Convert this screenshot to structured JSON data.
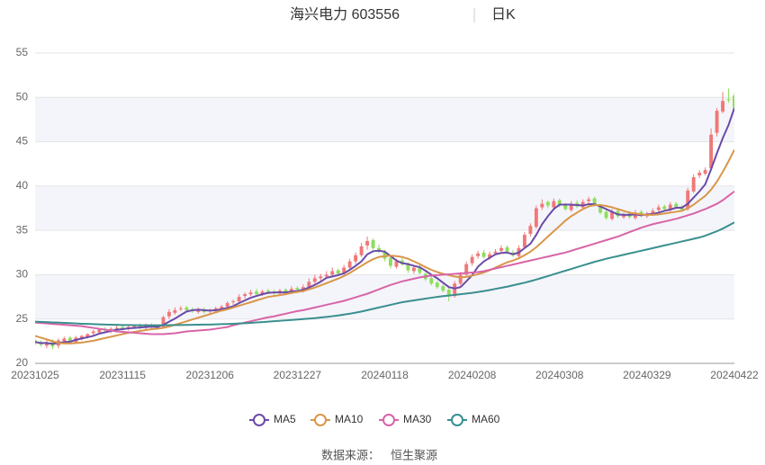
{
  "chart_data": {
    "type": "candlestick",
    "title": "海兴电力 603556",
    "subtitle": "日K",
    "source_label": "数据来源：",
    "source": "恒生聚源",
    "up_color": "#f07878",
    "down_color": "#8edd5c",
    "ylim": [
      20,
      55
    ],
    "yticks": [
      20,
      25,
      30,
      35,
      40,
      45,
      50,
      55
    ],
    "grid": true,
    "legend_position": "bottom",
    "categories": [
      "20231025",
      null,
      null,
      null,
      null,
      null,
      null,
      null,
      null,
      null,
      null,
      null,
      null,
      null,
      null,
      "20231115",
      null,
      null,
      null,
      null,
      null,
      null,
      null,
      null,
      null,
      null,
      null,
      null,
      null,
      null,
      "20231206",
      null,
      null,
      null,
      null,
      null,
      null,
      null,
      null,
      null,
      null,
      null,
      null,
      null,
      null,
      "20231227",
      null,
      null,
      null,
      null,
      null,
      null,
      null,
      null,
      null,
      null,
      null,
      null,
      null,
      null,
      "20240118",
      null,
      null,
      null,
      null,
      null,
      null,
      null,
      null,
      null,
      null,
      null,
      null,
      null,
      null,
      "20240208",
      null,
      null,
      null,
      null,
      null,
      null,
      null,
      null,
      null,
      null,
      null,
      null,
      null,
      null,
      "20240308",
      null,
      null,
      null,
      null,
      null,
      null,
      null,
      null,
      null,
      null,
      null,
      null,
      null,
      null,
      "20240329",
      null,
      null,
      null,
      null,
      null,
      null,
      null,
      null,
      null,
      null,
      null,
      null,
      null,
      null,
      "20240422"
    ],
    "open": [
      22.6,
      22.4,
      22.0,
      22.5,
      22.0,
      22.5,
      22.9,
      22.4,
      22.8,
      23.0,
      23.4,
      23.5,
      23.9,
      23.6,
      24.0,
      24.1,
      23.9,
      24.1,
      24.3,
      24.0,
      24.3,
      24.1,
      24.1,
      25.3,
      25.7,
      26.1,
      26.3,
      26.0,
      25.8,
      26.1,
      25.9,
      26.0,
      26.2,
      26.4,
      26.9,
      27.0,
      27.6,
      27.8,
      28.1,
      27.8,
      28.2,
      28.0,
      27.9,
      28.3,
      28.0,
      28.5,
      28.2,
      28.6,
      29.2,
      29.6,
      29.8,
      30.0,
      30.5,
      30.2,
      30.8,
      31.5,
      32.2,
      33.3,
      33.9,
      33.0,
      32.6,
      31.9,
      30.9,
      31.6,
      31.2,
      30.4,
      30.9,
      30.1,
      29.6,
      29.1,
      28.7,
      28.3,
      27.6,
      29.0,
      30.0,
      31.3,
      32.1,
      32.5,
      31.9,
      32.4,
      32.7,
      33.1,
      32.5,
      32.1,
      33.1,
      34.6,
      35.4,
      37.6,
      38.2,
      37.6,
      38.4,
      37.9,
      37.3,
      38.1,
      37.6,
      38.3,
      38.6,
      37.8,
      37.1,
      36.3,
      37.2,
      36.5,
      36.9,
      36.4,
      37.1,
      36.6,
      36.9,
      37.3,
      37.7,
      37.3,
      38.0,
      37.7,
      37.4,
      39.4,
      41.2,
      41.4,
      42.0,
      46.0,
      48.4,
      49.8,
      50.2
    ],
    "high": [
      22.8,
      22.6,
      22.6,
      22.7,
      22.8,
      23.0,
      23.1,
      23.1,
      23.2,
      23.4,
      23.8,
      23.9,
      24.1,
      24.1,
      24.3,
      24.3,
      24.3,
      24.4,
      24.5,
      24.5,
      24.5,
      24.3,
      25.4,
      26.1,
      26.3,
      26.5,
      26.5,
      26.3,
      26.3,
      26.3,
      26.2,
      26.4,
      26.6,
      27.0,
      27.2,
      27.8,
      28.0,
      28.3,
      28.4,
      28.3,
      28.4,
      28.3,
      28.4,
      28.5,
      28.7,
      28.7,
      28.9,
      29.6,
      30.0,
      30.1,
      30.4,
      30.8,
      30.7,
      31.1,
      31.8,
      32.5,
      33.6,
      34.3,
      34.1,
      33.4,
      32.8,
      32.2,
      31.8,
      31.9,
      31.4,
      31.1,
      31.2,
      30.3,
      29.9,
      29.3,
      28.9,
      28.5,
      29.3,
      30.3,
      31.5,
      32.3,
      32.7,
      32.8,
      32.6,
      32.9,
      33.3,
      33.3,
      32.8,
      33.3,
      34.8,
      35.8,
      37.8,
      38.5,
      38.4,
      38.6,
      38.6,
      38.1,
      38.3,
      38.4,
      38.5,
      38.8,
      38.8,
      38.0,
      37.3,
      37.4,
      37.4,
      37.0,
      37.2,
      37.3,
      37.3,
      37.1,
      37.5,
      37.9,
      37.9,
      38.2,
      38.2,
      37.9,
      39.8,
      41.3,
      41.8,
      42.1,
      46.5,
      48.8,
      50.6,
      51.0,
      50.5
    ],
    "low": [
      22.0,
      21.9,
      21.7,
      21.6,
      21.7,
      22.3,
      22.3,
      22.2,
      22.6,
      22.8,
      23.1,
      23.3,
      23.5,
      23.4,
      23.7,
      23.7,
      23.7,
      23.9,
      23.8,
      23.8,
      23.9,
      23.8,
      23.9,
      25.0,
      25.5,
      25.9,
      25.8,
      25.7,
      25.6,
      25.6,
      25.6,
      25.8,
      26.0,
      26.2,
      26.6,
      26.8,
      27.3,
      27.6,
      27.6,
      27.6,
      27.8,
      27.7,
      27.7,
      27.8,
      27.8,
      28.1,
      28.0,
      28.4,
      29.0,
      29.3,
      29.6,
      29.8,
      29.9,
      30.0,
      30.6,
      31.2,
      32.0,
      32.8,
      32.8,
      32.4,
      31.5,
      30.7,
      30.7,
      31.0,
      30.2,
      30.1,
      30.0,
      29.3,
      28.8,
      28.4,
      28.0,
      27.0,
      27.4,
      28.8,
      29.8,
      31.0,
      31.8,
      31.8,
      31.7,
      32.2,
      32.5,
      32.4,
      32.0,
      31.9,
      32.9,
      34.3,
      35.2,
      37.3,
      37.5,
      37.4,
      37.6,
      37.2,
      37.1,
      37.5,
      37.4,
      38.0,
      37.7,
      36.8,
      36.2,
      36.1,
      36.4,
      36.3,
      36.3,
      36.2,
      36.5,
      36.4,
      36.7,
      37.1,
      37.2,
      37.1,
      37.4,
      37.1,
      37.2,
      39.2,
      40.9,
      41.2,
      41.7,
      45.6,
      48.2,
      49.4,
      48.5
    ],
    "close": [
      22.3,
      22.1,
      22.4,
      21.9,
      22.6,
      22.8,
      22.5,
      22.9,
      23.1,
      23.3,
      23.6,
      23.8,
      23.7,
      23.9,
      24.0,
      23.9,
      24.1,
      24.2,
      24.0,
      24.3,
      24.1,
      24.0,
      25.2,
      25.8,
      26.0,
      26.2,
      26.0,
      25.9,
      26.1,
      25.8,
      26.0,
      26.2,
      26.4,
      26.8,
      27.0,
      27.5,
      27.8,
      28.0,
      27.8,
      28.1,
      28.0,
      27.9,
      28.2,
      28.0,
      28.4,
      28.3,
      28.6,
      29.2,
      29.6,
      29.8,
      30.0,
      30.4,
      30.1,
      30.8,
      31.5,
      32.2,
      33.2,
      33.8,
      33.0,
      32.6,
      31.8,
      31.0,
      31.5,
      31.2,
      30.5,
      30.8,
      30.2,
      29.5,
      29.0,
      28.6,
      28.2,
      27.6,
      29.0,
      30.0,
      31.2,
      32.0,
      32.4,
      32.0,
      32.3,
      32.6,
      33.0,
      32.6,
      32.2,
      33.0,
      34.5,
      35.5,
      37.5,
      38.0,
      37.8,
      38.3,
      37.9,
      37.4,
      38.0,
      37.7,
      38.2,
      38.5,
      37.9,
      37.0,
      36.4,
      37.1,
      36.6,
      36.8,
      36.5,
      37.0,
      36.7,
      36.9,
      37.2,
      37.6,
      37.4,
      37.9,
      37.6,
      37.3,
      39.5,
      41.0,
      41.5,
      41.8,
      45.8,
      48.5,
      49.6,
      49.7,
      48.8
    ],
    "series": [
      {
        "name": "MA5",
        "color": "#6a4ba8",
        "values": [
          22.4,
          22.3,
          22.3,
          22.2,
          22.3,
          22.4,
          22.45,
          22.65,
          22.8,
          22.95,
          23.1,
          23.35,
          23.5,
          23.65,
          23.8,
          23.85,
          23.95,
          24.0,
          24.05,
          24.1,
          24.15,
          24.1,
          24.35,
          24.7,
          25.05,
          25.45,
          25.85,
          26.0,
          26.05,
          26.0,
          25.95,
          26.0,
          26.1,
          26.25,
          26.45,
          26.8,
          27.1,
          27.4,
          27.6,
          27.8,
          27.95,
          28.0,
          28.0,
          28.0,
          28.1,
          28.15,
          28.3,
          28.55,
          28.85,
          29.2,
          29.65,
          29.8,
          29.95,
          30.15,
          30.55,
          31.0,
          31.5,
          32.3,
          32.65,
          32.7,
          32.6,
          32.1,
          31.6,
          31.3,
          31.2,
          31.0,
          30.85,
          30.45,
          30.0,
          29.6,
          29.1,
          28.6,
          28.45,
          28.6,
          29.25,
          29.95,
          30.9,
          31.5,
          31.9,
          32.3,
          32.45,
          32.5,
          32.3,
          32.5,
          33.0,
          33.5,
          34.5,
          35.7,
          36.6,
          37.4,
          37.9,
          37.9,
          37.9,
          37.85,
          37.8,
          37.95,
          37.95,
          37.7,
          37.4,
          37.1,
          36.8,
          36.75,
          36.75,
          36.8,
          36.7,
          36.8,
          36.85,
          37.0,
          37.2,
          37.35,
          37.55,
          37.55,
          38.0,
          38.7,
          39.4,
          40.2,
          41.9,
          43.7,
          45.4,
          46.9,
          48.8
        ]
      },
      {
        "name": "MA10",
        "color": "#d9964a",
        "values": [
          23.1,
          22.9,
          22.7,
          22.5,
          22.3,
          22.25,
          22.25,
          22.3,
          22.35,
          22.45,
          22.55,
          22.7,
          22.85,
          23.0,
          23.15,
          23.3,
          23.45,
          23.55,
          23.65,
          23.75,
          23.85,
          23.9,
          24.0,
          24.15,
          24.35,
          24.55,
          24.75,
          24.95,
          25.15,
          25.35,
          25.55,
          25.75,
          25.95,
          26.1,
          26.3,
          26.5,
          26.7,
          26.9,
          27.1,
          27.3,
          27.5,
          27.6,
          27.7,
          27.8,
          27.95,
          28.05,
          28.15,
          28.35,
          28.55,
          28.8,
          29.05,
          29.3,
          29.55,
          29.85,
          30.2,
          30.6,
          31.0,
          31.4,
          31.75,
          32.0,
          32.1,
          32.15,
          32.1,
          32.0,
          31.8,
          31.5,
          31.2,
          30.85,
          30.55,
          30.3,
          30.1,
          29.95,
          29.8,
          29.7,
          29.75,
          29.9,
          30.05,
          30.25,
          30.5,
          30.8,
          31.1,
          31.4,
          31.6,
          31.85,
          32.2,
          32.6,
          33.1,
          33.7,
          34.3,
          34.9,
          35.5,
          36.1,
          36.6,
          37.0,
          37.4,
          37.7,
          37.85,
          37.85,
          37.75,
          37.6,
          37.4,
          37.2,
          37.0,
          36.9,
          36.8,
          36.75,
          36.75,
          36.8,
          36.9,
          37.0,
          37.1,
          37.2,
          37.5,
          37.9,
          38.4,
          38.9,
          39.6,
          40.5,
          41.6,
          42.8,
          44.1
        ]
      },
      {
        "name": "MA30",
        "color": "#d864a8",
        "values": [
          24.6,
          24.55,
          24.5,
          24.45,
          24.4,
          24.35,
          24.3,
          24.25,
          24.2,
          24.1,
          24.0,
          23.9,
          23.8,
          23.7,
          23.6,
          23.55,
          23.5,
          23.45,
          23.4,
          23.35,
          23.3,
          23.3,
          23.3,
          23.35,
          23.4,
          23.5,
          23.6,
          23.65,
          23.7,
          23.75,
          23.8,
          23.9,
          24.0,
          24.1,
          24.3,
          24.45,
          24.6,
          24.75,
          24.9,
          25.05,
          25.2,
          25.3,
          25.45,
          25.6,
          25.75,
          25.9,
          26.0,
          26.15,
          26.3,
          26.45,
          26.6,
          26.75,
          26.9,
          27.05,
          27.25,
          27.45,
          27.65,
          27.85,
          28.1,
          28.35,
          28.6,
          28.85,
          29.05,
          29.25,
          29.4,
          29.55,
          29.7,
          29.8,
          29.9,
          29.95,
          30.0,
          30.05,
          30.1,
          30.15,
          30.2,
          30.25,
          30.3,
          30.4,
          30.55,
          30.7,
          30.85,
          31.0,
          31.15,
          31.3,
          31.45,
          31.6,
          31.75,
          31.9,
          32.05,
          32.2,
          32.35,
          32.5,
          32.7,
          32.9,
          33.1,
          33.3,
          33.5,
          33.7,
          33.9,
          34.1,
          34.3,
          34.55,
          34.8,
          35.05,
          35.3,
          35.5,
          35.7,
          35.85,
          36.0,
          36.15,
          36.3,
          36.5,
          36.7,
          36.9,
          37.15,
          37.4,
          37.7,
          38.0,
          38.4,
          38.9,
          39.4
        ]
      },
      {
        "name": "MA60",
        "color": "#3a8f8f",
        "values": [
          24.7,
          24.68,
          24.65,
          24.62,
          24.6,
          24.57,
          24.54,
          24.5,
          24.47,
          24.45,
          24.42,
          24.4,
          24.38,
          24.36,
          24.35,
          24.33,
          24.32,
          24.31,
          24.3,
          24.3,
          24.3,
          24.3,
          24.3,
          24.31,
          24.32,
          24.33,
          24.34,
          24.35,
          24.36,
          24.37,
          24.38,
          24.4,
          24.42,
          24.44,
          24.47,
          24.5,
          24.53,
          24.57,
          24.61,
          24.65,
          24.7,
          24.75,
          24.8,
          24.85,
          24.9,
          24.95,
          25.0,
          25.05,
          25.1,
          25.17,
          25.24,
          25.32,
          25.4,
          25.5,
          25.6,
          25.72,
          25.85,
          26.0,
          26.15,
          26.3,
          26.45,
          26.6,
          26.75,
          26.9,
          27.0,
          27.1,
          27.2,
          27.3,
          27.4,
          27.5,
          27.58,
          27.65,
          27.72,
          27.8,
          27.87,
          27.95,
          28.05,
          28.15,
          28.27,
          28.4,
          28.52,
          28.65,
          28.8,
          28.95,
          29.1,
          29.27,
          29.45,
          29.65,
          29.85,
          30.05,
          30.25,
          30.45,
          30.65,
          30.85,
          31.05,
          31.25,
          31.45,
          31.62,
          31.8,
          31.95,
          32.1,
          32.25,
          32.4,
          32.55,
          32.7,
          32.85,
          33.0,
          33.15,
          33.3,
          33.45,
          33.6,
          33.75,
          33.9,
          34.05,
          34.2,
          34.4,
          34.65,
          34.9,
          35.2,
          35.55,
          35.9
        ]
      }
    ]
  }
}
